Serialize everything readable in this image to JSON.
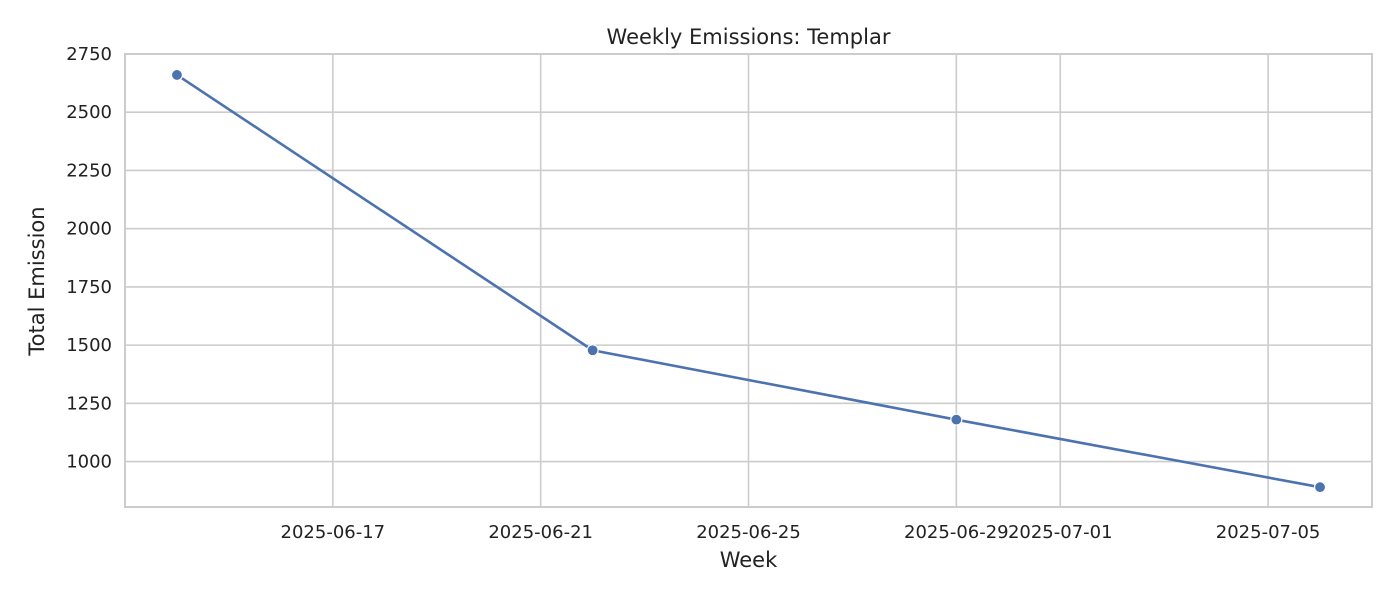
{
  "chart_data": {
    "type": "line",
    "title": "Weekly Emissions: Templar",
    "xlabel": "Week",
    "ylabel": "Total Emission",
    "x_axis_type": "date",
    "xlim": [
      "2025-06-13",
      "2025-07-07"
    ],
    "x_ticks": [
      "2025-06-17",
      "2025-06-21",
      "2025-06-25",
      "2025-06-29",
      "2025-07-01",
      "2025-07-05"
    ],
    "ylim": [
      805,
      2750
    ],
    "y_ticks": [
      1000,
      1250,
      1500,
      1750,
      2000,
      2250,
      2500,
      2750
    ],
    "grid": true,
    "series": [
      {
        "x": [
          "2025-06-14",
          "2025-06-22",
          "2025-06-29",
          "2025-07-06"
        ],
        "values": [
          2660,
          1478,
          1180,
          890
        ],
        "color": "#4c72b0",
        "marker": "circle"
      }
    ]
  }
}
